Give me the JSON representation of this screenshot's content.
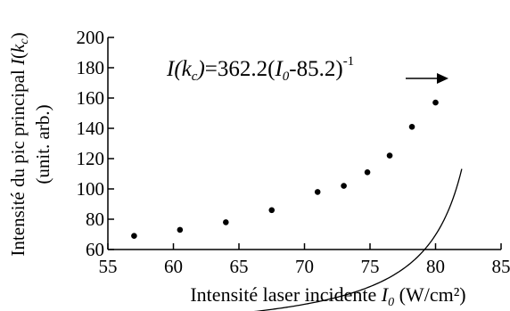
{
  "chart_data": {
    "type": "scatter",
    "xlabel": "Intensité laser incidente",
    "xlabel_symbol": "I",
    "xlabel_symbol_sub": "0",
    "xlabel_unit": " (W/cm²)",
    "ylabel_line1_text": "Intensité du pic principal ",
    "ylabel_line1_symbol": "I",
    "ylabel_line1_paren_open": "(",
    "ylabel_line1_k": "k",
    "ylabel_line1_sub": "c",
    "ylabel_line1_paren_close": ")",
    "ylabel_line2": "(unit. arb.)",
    "xlim": [
      55,
      85
    ],
    "ylim": [
      60,
      200
    ],
    "x_ticks": [
      55,
      60,
      65,
      70,
      75,
      80,
      85
    ],
    "y_ticks": [
      60,
      80,
      100,
      120,
      140,
      160,
      180,
      200
    ],
    "points": [
      {
        "x": 57.0,
        "y": 69
      },
      {
        "x": 60.5,
        "y": 73
      },
      {
        "x": 64.0,
        "y": 78
      },
      {
        "x": 67.5,
        "y": 86
      },
      {
        "x": 71.0,
        "y": 98
      },
      {
        "x": 73.0,
        "y": 102
      },
      {
        "x": 74.8,
        "y": 111
      },
      {
        "x": 76.5,
        "y": 122
      },
      {
        "x": 78.2,
        "y": 141
      },
      {
        "x": 80.0,
        "y": 157
      }
    ],
    "fit": {
      "formula": "y = 362.2 * (x - 85.2)^-1",
      "A": 362.2,
      "x0": 85.2,
      "x_range": [
        55,
        82
      ]
    },
    "annotation": {
      "part_I": "I",
      "part_paren_open": "(",
      "part_k": "k",
      "part_sub_c": "c",
      "part_paren_close": ")",
      "part_eq": "=362.2(",
      "part_I0": "I",
      "part_sub_0": "0",
      "part_rest": "-85.2)",
      "part_sup": "-1"
    },
    "grid": false,
    "legend": "none"
  }
}
